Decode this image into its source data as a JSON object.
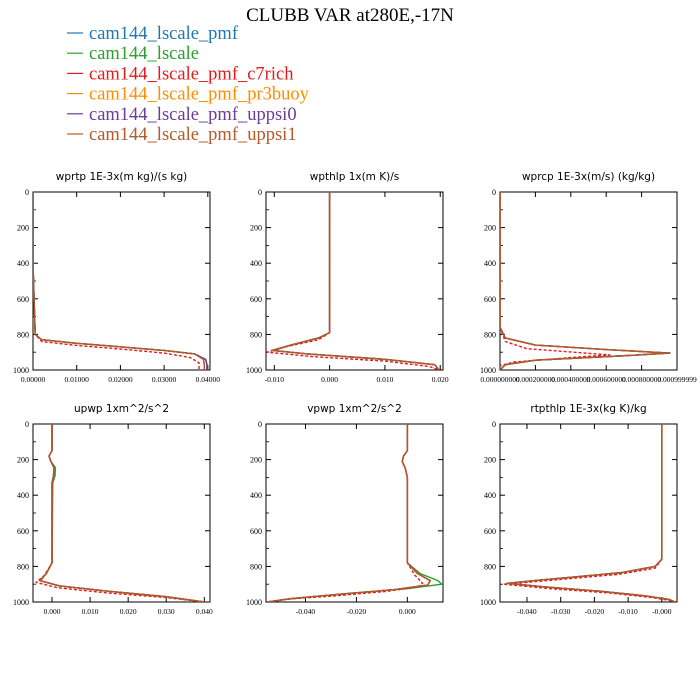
{
  "chart_data": {
    "title": "CLUBB VAR at280E,-17N",
    "legend_placement": "top-left",
    "series": [
      {
        "name": "cam144_lscale_pmf",
        "color": "#1f77b4",
        "dash": false
      },
      {
        "name": "cam144_lscale",
        "color": "#2ca02c",
        "dash": false
      },
      {
        "name": "cam144_lscale_pmf_c7rich",
        "color": "#e31a1c",
        "dash": true
      },
      {
        "name": "cam144_lscale_pmf_pr3buoy",
        "color": "#ff8c00",
        "dash": false
      },
      {
        "name": "cam144_lscale_pmf_uppsi0",
        "color": "#6a3d9a",
        "dash": false
      },
      {
        "name": "cam144_lscale_pmf_uppsi1",
        "color": "#b35a2a",
        "dash": false
      }
    ],
    "panels": [
      {
        "type": "line",
        "title": "wprtp  1E-3x(m kg)/(s kg)",
        "xlim": [
          0.0,
          0.0405
        ],
        "ylim": [
          1000,
          0
        ],
        "xticks": [
          0.0,
          0.01,
          0.02,
          0.03,
          0.04
        ],
        "xtick_labels": [
          "0.00000",
          "0.01000",
          "0.02000",
          "0.03000",
          "0.04000"
        ],
        "yticks": [
          0,
          200,
          400,
          600,
          800,
          1000
        ],
        "ytick_labels": [
          "0",
          "200",
          "400",
          "600",
          "800",
          "1000"
        ],
        "profiles": {
          "base": [
            [
              0.0,
              0
            ],
            [
              0.0,
              400
            ],
            [
              0.0005,
              800
            ],
            [
              0.002,
              830
            ],
            [
              0.01,
              850
            ],
            [
              0.02,
              870
            ],
            [
              0.03,
              890
            ],
            [
              0.037,
              910
            ],
            [
              0.039,
              940
            ],
            [
              0.0392,
              970
            ],
            [
              0.0392,
              1000
            ]
          ],
          "c7rich": [
            [
              0.0,
              0
            ],
            [
              0.0,
              400
            ],
            [
              0.0005,
              800
            ],
            [
              0.002,
              840
            ],
            [
              0.01,
              862
            ],
            [
              0.02,
              882
            ],
            [
              0.03,
              905
            ],
            [
              0.036,
              930
            ],
            [
              0.038,
              960
            ],
            [
              0.038,
              1000
            ]
          ],
          "alt": [
            [
              0.0,
              0
            ],
            [
              0.0,
              400
            ],
            [
              0.0005,
              800
            ],
            [
              0.002,
              830
            ],
            [
              0.01,
              850
            ],
            [
              0.02,
              870
            ],
            [
              0.03,
              890
            ],
            [
              0.037,
              910
            ],
            [
              0.0395,
              940
            ],
            [
              0.0398,
              970
            ],
            [
              0.0398,
              1000
            ]
          ]
        }
      },
      {
        "type": "line",
        "title": "wpthlp  1x(m K)/s",
        "xlim": [
          -0.0115,
          0.0205
        ],
        "ylim": [
          1000,
          0
        ],
        "xticks": [
          -0.01,
          0.0,
          0.01,
          0.02
        ],
        "xtick_labels": [
          "-0.010",
          "0.000",
          "0.010",
          "0.020"
        ],
        "yticks": [
          0,
          200,
          400,
          600,
          800,
          1000
        ],
        "ytick_labels": [
          "0",
          "200",
          "400",
          "600",
          "800",
          "1000"
        ],
        "profiles": {
          "base": [
            [
              0.0,
              0
            ],
            [
              0.0,
              790
            ],
            [
              -0.002,
              820
            ],
            [
              -0.007,
              860
            ],
            [
              -0.0105,
              890
            ],
            [
              -0.004,
              910
            ],
            [
              0.01,
              940
            ],
            [
              0.019,
              970
            ],
            [
              0.0198,
              1000
            ]
          ],
          "c7rich": [
            [
              0.0,
              0
            ],
            [
              0.0,
              790
            ],
            [
              -0.002,
              830
            ],
            [
              -0.008,
              870
            ],
            [
              -0.0113,
              900
            ],
            [
              -0.003,
              925
            ],
            [
              0.01,
              950
            ],
            [
              0.018,
              980
            ],
            [
              0.0198,
              1000
            ]
          ],
          "alt": [
            [
              0.0,
              0
            ],
            [
              0.0,
              790
            ],
            [
              -0.002,
              820
            ],
            [
              -0.007,
              860
            ],
            [
              -0.0102,
              890
            ],
            [
              -0.004,
              910
            ],
            [
              0.01,
              940
            ],
            [
              0.019,
              970
            ],
            [
              0.0198,
              1000
            ]
          ]
        }
      },
      {
        "type": "line",
        "title": "wprcp  1E-3x(m/s) (kg/kg)",
        "xlim": [
          0.0,
          0.00099999
        ],
        "ylim": [
          1000,
          0
        ],
        "xticks": [
          0.0,
          0.0002,
          0.0004,
          0.0006,
          0.0008,
          0.00099999
        ],
        "xtick_labels": [
          "0.000000000",
          "0.000200000",
          "0.000400000",
          "0.000600000",
          "0.000800000",
          "0.000999999"
        ],
        "yticks": [
          0,
          200,
          400,
          600,
          800,
          1000
        ],
        "ytick_labels": [
          "0",
          "200",
          "400",
          "600",
          "800",
          "1000"
        ],
        "profiles": {
          "base": [
            [
              0.0,
              0
            ],
            [
              0.0,
              760
            ],
            [
              3e-05,
              820
            ],
            [
              0.0002,
              860
            ],
            [
              0.0006,
              885
            ],
            [
              0.00095,
              905
            ],
            [
              0.0007,
              920
            ],
            [
              0.0002,
              945
            ],
            [
              3e-05,
              970
            ],
            [
              0.0,
              1000
            ]
          ],
          "c7rich": [
            [
              0.0,
              0
            ],
            [
              0.0,
              760
            ],
            [
              3e-05,
              840
            ],
            [
              0.00015,
              880
            ],
            [
              0.00048,
              905
            ],
            [
              0.00062,
              915
            ],
            [
              0.0004,
              930
            ],
            [
              8e-05,
              955
            ],
            [
              0.0,
              975
            ],
            [
              0.0,
              1000
            ]
          ],
          "alt": [
            [
              0.0,
              0
            ],
            [
              0.0,
              760
            ],
            [
              3e-05,
              820
            ],
            [
              0.0002,
              860
            ],
            [
              0.0006,
              885
            ],
            [
              0.00096,
              905
            ],
            [
              0.0007,
              920
            ],
            [
              0.0002,
              945
            ],
            [
              3e-05,
              970
            ],
            [
              0.0,
              1000
            ]
          ]
        }
      },
      {
        "type": "line",
        "title": "upwp  1xm^2/s^2",
        "xlim": [
          -0.005,
          0.0415
        ],
        "ylim": [
          1000,
          0
        ],
        "xticks": [
          0.0,
          0.01,
          0.02,
          0.03,
          0.04
        ],
        "xtick_labels": [
          "0.000",
          "0.010",
          "0.020",
          "0.030",
          "0.040"
        ],
        "yticks": [
          0,
          200,
          400,
          600,
          800,
          1000
        ],
        "ytick_labels": [
          "0",
          "200",
          "400",
          "600",
          "800",
          "1000"
        ],
        "profiles": {
          "base": [
            [
              0.0,
              0
            ],
            [
              0.0,
              150
            ],
            [
              -0.0008,
              180
            ],
            [
              -0.0003,
              210
            ],
            [
              0.0005,
              245
            ],
            [
              0.0004,
              290
            ],
            [
              0.0,
              330
            ],
            [
              0.0,
              780
            ],
            [
              -0.0015,
              840
            ],
            [
              -0.0032,
              880
            ],
            [
              0.002,
              910
            ],
            [
              0.015,
              940
            ],
            [
              0.03,
              970
            ],
            [
              0.04,
              1000
            ]
          ],
          "c7rich": [
            [
              0.0,
              0
            ],
            [
              0.0,
              150
            ],
            [
              -0.0008,
              180
            ],
            [
              -0.0003,
              210
            ],
            [
              0.0005,
              245
            ],
            [
              0.0004,
              290
            ],
            [
              0.0,
              330
            ],
            [
              0.0,
              780
            ],
            [
              -0.002,
              850
            ],
            [
              -0.0042,
              890
            ],
            [
              0.0015,
              920
            ],
            [
              0.015,
              950
            ],
            [
              0.03,
              975
            ],
            [
              0.04,
              1000
            ]
          ],
          "green": [
            [
              0.0,
              0
            ],
            [
              0.0,
              150
            ],
            [
              -0.0008,
              180
            ],
            [
              -0.0003,
              210
            ],
            [
              0.0009,
              245
            ],
            [
              0.0008,
              290
            ],
            [
              0.0002,
              330
            ],
            [
              0.0,
              780
            ],
            [
              -0.0015,
              840
            ],
            [
              -0.003,
              880
            ],
            [
              0.002,
              910
            ],
            [
              0.015,
              940
            ],
            [
              0.03,
              970
            ],
            [
              0.04,
              1000
            ]
          ]
        }
      },
      {
        "type": "line",
        "title": "vpwp  1xm^2/s^2",
        "xlim": [
          -0.0555,
          0.014
        ],
        "ylim": [
          1000,
          0
        ],
        "xticks": [
          -0.04,
          -0.02,
          0.0
        ],
        "xtick_labels": [
          "-0.040",
          "-0.020",
          "0.000"
        ],
        "yticks": [
          0,
          200,
          400,
          600,
          800,
          1000
        ],
        "ytick_labels": [
          "0",
          "200",
          "400",
          "600",
          "800",
          "1000"
        ],
        "profiles": {
          "base": [
            [
              0.0,
              0
            ],
            [
              0.0,
              150
            ],
            [
              -0.0015,
              180
            ],
            [
              -0.002,
              210
            ],
            [
              -0.0008,
              250
            ],
            [
              0.0,
              300
            ],
            [
              0.0,
              780
            ],
            [
              0.004,
              840
            ],
            [
              0.009,
              880
            ],
            [
              0.008,
              905
            ],
            [
              -0.005,
              930
            ],
            [
              -0.025,
              955
            ],
            [
              -0.045,
              980
            ],
            [
              -0.055,
              1000
            ]
          ],
          "c7rich": [
            [
              0.0,
              0
            ],
            [
              0.0,
              150
            ],
            [
              -0.0015,
              180
            ],
            [
              -0.002,
              210
            ],
            [
              -0.0008,
              250
            ],
            [
              0.0,
              300
            ],
            [
              0.0,
              780
            ],
            [
              0.003,
              850
            ],
            [
              0.006,
              895
            ],
            [
              0.004,
              915
            ],
            [
              -0.008,
              940
            ],
            [
              -0.028,
              965
            ],
            [
              -0.048,
              985
            ],
            [
              -0.055,
              1000
            ]
          ],
          "green": [
            [
              0.0,
              0
            ],
            [
              0.0,
              150
            ],
            [
              -0.0015,
              180
            ],
            [
              -0.002,
              210
            ],
            [
              -0.0008,
              250
            ],
            [
              0.0,
              300
            ],
            [
              0.0,
              780
            ],
            [
              0.005,
              840
            ],
            [
              0.012,
              880
            ],
            [
              0.0135,
              900
            ],
            [
              0.0,
              925
            ],
            [
              -0.022,
              950
            ],
            [
              -0.045,
              980
            ],
            [
              -0.055,
              1000
            ]
          ]
        }
      },
      {
        "type": "line",
        "title": "rtpthlp  1E-3x(kg K)/kg",
        "xlim": [
          -0.048,
          0.0045
        ],
        "ylim": [
          1000,
          0
        ],
        "xticks": [
          -0.04,
          -0.03,
          -0.02,
          -0.01,
          0.0
        ],
        "xtick_labels": [
          "-0.040",
          "-0.030",
          "-0.020",
          "-0.010",
          "-0.000"
        ],
        "yticks": [
          0,
          200,
          400,
          600,
          800,
          1000
        ],
        "ytick_labels": [
          "0",
          "200",
          "400",
          "600",
          "800",
          "1000"
        ],
        "profiles": {
          "base": [
            [
              0.0,
              0
            ],
            [
              0.0,
              760
            ],
            [
              -0.002,
              800
            ],
            [
              -0.012,
              835
            ],
            [
              -0.025,
              858
            ],
            [
              -0.037,
              878
            ],
            [
              -0.046,
              895
            ],
            [
              -0.035,
              915
            ],
            [
              -0.018,
              940
            ],
            [
              -0.005,
              965
            ],
            [
              0.002,
              985
            ],
            [
              0.004,
              1000
            ]
          ],
          "c7rich": [
            [
              0.0,
              0
            ],
            [
              0.0,
              760
            ],
            [
              -0.002,
              810
            ],
            [
              -0.013,
              845
            ],
            [
              -0.027,
              868
            ],
            [
              -0.039,
              888
            ],
            [
              -0.047,
              900
            ],
            [
              -0.033,
              925
            ],
            [
              -0.015,
              950
            ],
            [
              -0.003,
              975
            ],
            [
              0.002,
              990
            ],
            [
              0.004,
              1000
            ]
          ],
          "alt": [
            [
              0.0,
              0
            ],
            [
              0.0,
              760
            ],
            [
              -0.002,
              800
            ],
            [
              -0.012,
              835
            ],
            [
              -0.025,
              858
            ],
            [
              -0.037,
              878
            ],
            [
              -0.0455,
              895
            ],
            [
              -0.035,
              915
            ],
            [
              -0.018,
              940
            ],
            [
              -0.005,
              965
            ],
            [
              0.002,
              985
            ],
            [
              0.004,
              1000
            ]
          ]
        }
      }
    ]
  }
}
